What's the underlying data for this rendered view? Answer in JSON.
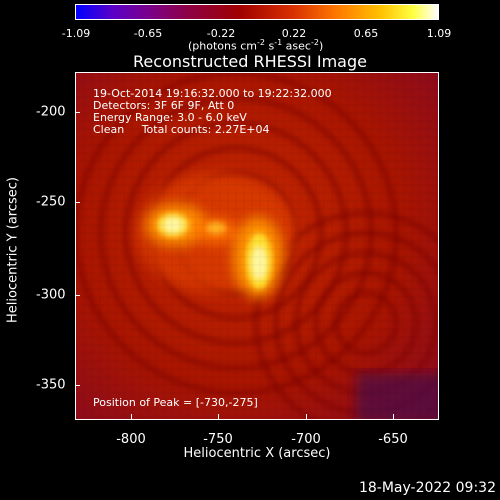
{
  "colorbar": {
    "ticks": [
      "-1.09",
      "-0.65",
      "-0.22",
      "0.22",
      "0.65",
      "1.09"
    ],
    "unit_text": "(photons cm",
    "unit_exp1": "-2",
    "unit_mid1": " s",
    "unit_exp2": "-1",
    "unit_mid2": " asec",
    "unit_exp3": "-2",
    "unit_end": ")"
  },
  "title": "Reconstructed RHESSI Image",
  "info": {
    "time": "19-Oct-2014 19:16:32.000 to 19:22:32.000",
    "detectors": "Detectors: 3F 6F 9F, Att 0",
    "energy": "Energy Range: 3.0 - 6.0 keV",
    "method": "Clean     Total counts: 2.27E+04",
    "peak": "Position of Peak = [-730,-275]"
  },
  "axes": {
    "xlabel": "Heliocentric X (arcsec)",
    "ylabel": "Heliocentric Y (arcsec)",
    "xticks": [
      "-800",
      "-750",
      "-700",
      "-650"
    ],
    "yticks": [
      "-200",
      "-250",
      "-300",
      "-350"
    ]
  },
  "datestamp": "18-May-2022 09:32",
  "colors": {
    "background": "#000000",
    "text": "#ffffff"
  }
}
